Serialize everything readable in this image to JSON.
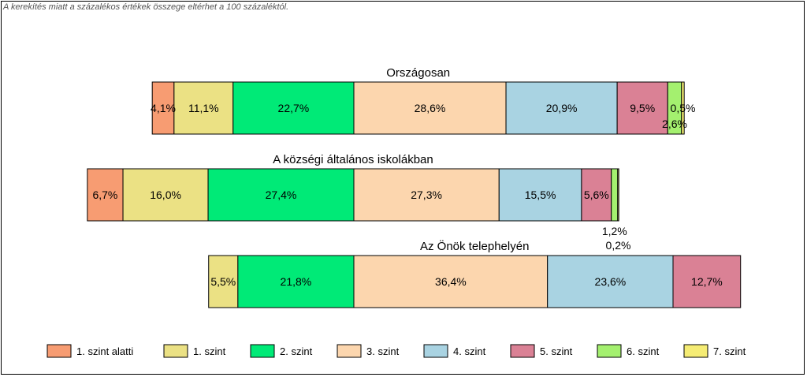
{
  "note": "A kerekítés miatt a  százalékos értékek összege eltérhet a 100 százaléktól.",
  "chart_data": {
    "type": "bar",
    "orientation": "horizontal-stacked-centered",
    "series": [
      {
        "name": "1. szint alatti",
        "color": "#F79C72"
      },
      {
        "name": "1. szint",
        "color": "#EBE184"
      },
      {
        "name": "2. szint",
        "color": "#00EA77"
      },
      {
        "name": "3. szint",
        "color": "#FCD6AE"
      },
      {
        "name": "4. szint",
        "color": "#A9D3E2"
      },
      {
        "name": "5. szint",
        "color": "#DA8195"
      },
      {
        "name": "6. szint",
        "color": "#A4F06F"
      },
      {
        "name": "7. szint",
        "color": "#F5EC74"
      }
    ],
    "groups": [
      {
        "title": "Országosan",
        "values": [
          4.1,
          11.1,
          22.7,
          28.6,
          20.9,
          9.5,
          2.6,
          0.5
        ],
        "labels": [
          "4,1%",
          "11,1%",
          "22,7%",
          "28,6%",
          "20,9%",
          "9,5%",
          "2,6%",
          "0,5%"
        ]
      },
      {
        "title": "A községi általános iskolákban",
        "values": [
          6.7,
          16.0,
          27.4,
          27.3,
          15.5,
          5.6,
          1.2,
          0.2
        ],
        "labels": [
          "6,7%",
          "16,0%",
          "27,4%",
          "27,3%",
          "15,5%",
          "5,6%",
          "1,2%",
          "0,2%"
        ]
      },
      {
        "title": "Az Önök telephelyén",
        "values": [
          0,
          5.5,
          21.8,
          36.4,
          23.6,
          12.7,
          0,
          0
        ],
        "labels": [
          "",
          "5,5%",
          "21,8%",
          "36,4%",
          "23,6%",
          "12,7%",
          "",
          ""
        ]
      }
    ],
    "legend_position": "bottom",
    "grid": false
  }
}
